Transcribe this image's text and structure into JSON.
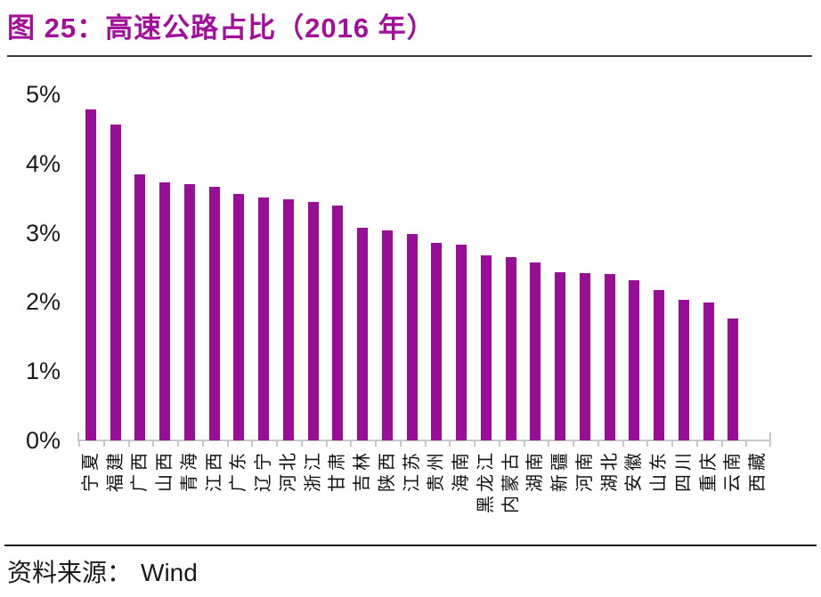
{
  "figure": {
    "title": "图 25：高速公路占比（2016 年）",
    "source_label": "资料来源：",
    "source_value": "Wind"
  },
  "colors": {
    "bar": "#980E96",
    "title": "#A2109A",
    "axis": "#C8C8C8"
  },
  "chart_data": {
    "type": "bar",
    "title": "图 25：高速公路占比（2016 年）",
    "xlabel": "",
    "ylabel": "",
    "unit": "%",
    "categories": [
      "宁夏",
      "福建",
      "广西",
      "山西",
      "青海",
      "江西",
      "广东",
      "辽宁",
      "河北",
      "浙江",
      "甘肃",
      "吉林",
      "陕西",
      "江苏",
      "贵州",
      "海南",
      "黑龙江",
      "内蒙古",
      "湖南",
      "新疆",
      "河南",
      "湖北",
      "安徽",
      "山东",
      "四川",
      "重庆",
      "云南",
      "西藏"
    ],
    "values": [
      4.78,
      4.56,
      3.84,
      3.73,
      3.7,
      3.67,
      3.56,
      3.51,
      3.48,
      3.44,
      3.4,
      3.07,
      3.03,
      2.98,
      2.86,
      2.83,
      2.67,
      2.65,
      2.57,
      2.43,
      2.42,
      2.4,
      2.32,
      2.17,
      2.03,
      1.99,
      1.76,
      0
    ],
    "y_ticks": [
      "0%",
      "1%",
      "2%",
      "3%",
      "4%",
      "5%"
    ],
    "ylim": [
      0,
      5
    ],
    "grid": false,
    "legend": "none",
    "x_label_rotation": -90,
    "bar_color": "#980E96",
    "source": "资料来源：Wind"
  }
}
